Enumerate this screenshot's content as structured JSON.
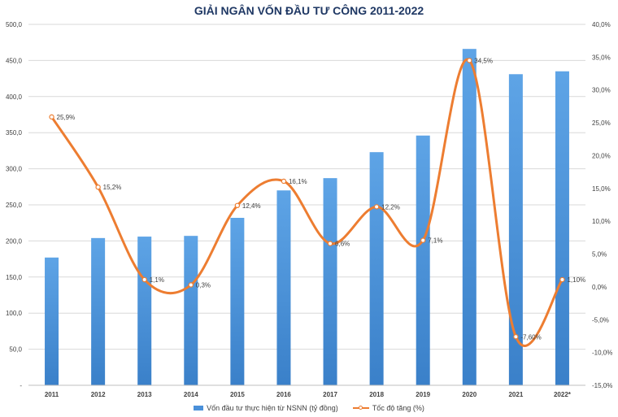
{
  "chart_data": {
    "type": "bar+line",
    "title": "GIẢI NGÂN VỐN ĐẦU TƯ CÔNG 2011-2022",
    "categories": [
      "2011",
      "2012",
      "2013",
      "2014",
      "2015",
      "2016",
      "2017",
      "2018",
      "2019",
      "2020",
      "2021",
      "2022*"
    ],
    "series": [
      {
        "name": "Vốn đầu tư thực hiện từ NSNN (tỷ đồng)",
        "type": "bar",
        "axis": "left",
        "color": "#4a90d9",
        "values": [
          177,
          204,
          206,
          207,
          232,
          270,
          287,
          323,
          346,
          466,
          431,
          435
        ]
      },
      {
        "name": "Tốc độ tăng (%)",
        "type": "line",
        "axis": "right",
        "color": "#ed7d31",
        "values": [
          25.9,
          15.2,
          1.1,
          0.3,
          12.4,
          16.1,
          6.6,
          12.2,
          7.1,
          34.5,
          -7.6,
          1.1
        ],
        "labels": [
          "25,9%",
          "15,2%",
          "1,1%",
          "0,3%",
          "12,4%",
          "16,1%",
          "6,6%",
          "12,2%",
          "7,1%",
          "34,5%",
          "-7,60%",
          "1,10%"
        ]
      }
    ],
    "y_left": {
      "min": 0,
      "max": 500,
      "ticks": [
        0,
        50,
        100,
        150,
        200,
        250,
        300,
        350,
        400,
        450,
        500
      ],
      "tick_labels": [
        "-",
        "50,0",
        "100,0",
        "150,0",
        "200,0",
        "250,0",
        "300,0",
        "350,0",
        "400,0",
        "450,0",
        "500,0"
      ]
    },
    "y_right": {
      "min": -15,
      "max": 40,
      "ticks": [
        -15,
        -10,
        -5,
        0,
        5,
        10,
        15,
        20,
        25,
        30,
        35,
        40
      ],
      "tick_labels": [
        "-15,0%",
        "-10,0%",
        "-5,0%",
        "0,0%",
        "5,0%",
        "10,0%",
        "15,0%",
        "20,0%",
        "25,0%",
        "30,0%",
        "35,0%",
        "40,0%"
      ]
    },
    "grid": true,
    "legend_position": "bottom"
  }
}
